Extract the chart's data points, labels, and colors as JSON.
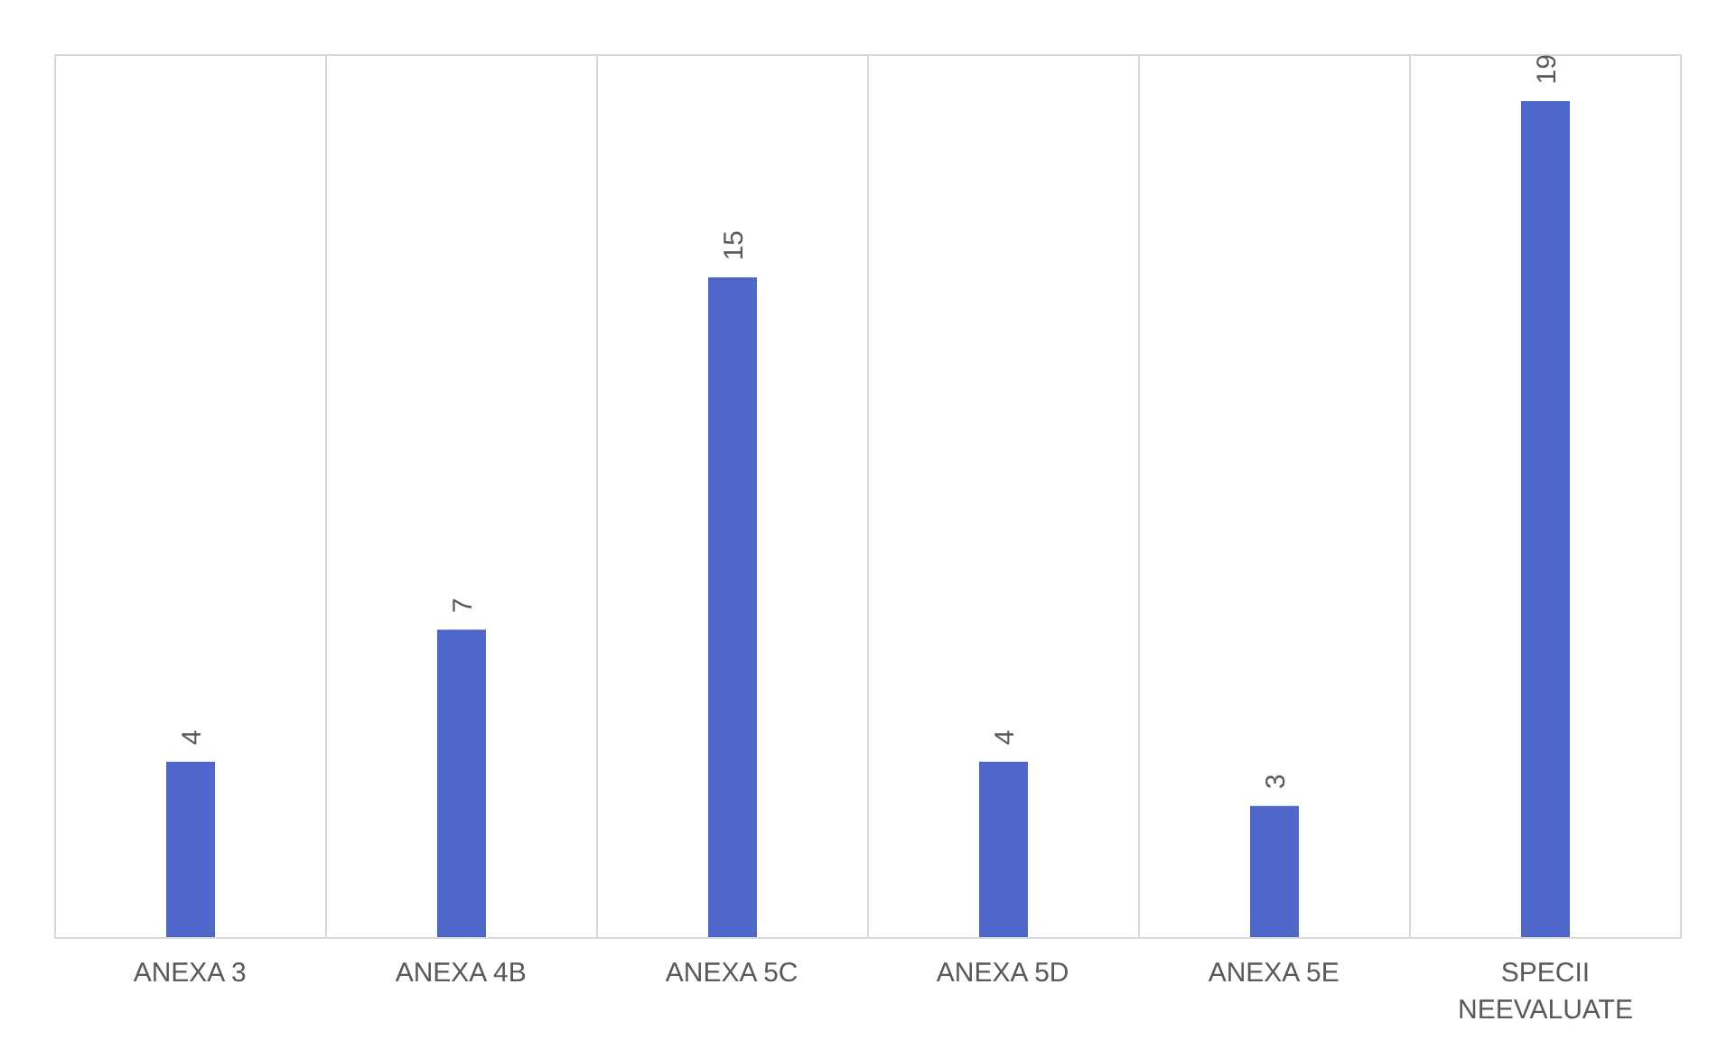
{
  "chart_data": {
    "type": "bar",
    "categories": [
      "ANEXA 3",
      "ANEXA 4B",
      "ANEXA 5C",
      "ANEXA 5D",
      "ANEXA 5E",
      "SPECII NEEVALUATE"
    ],
    "values": [
      4,
      7,
      15,
      4,
      3,
      19
    ],
    "color": "#4f67c9",
    "data_labels": true,
    "grid": "x",
    "tick_labels": "x"
  }
}
